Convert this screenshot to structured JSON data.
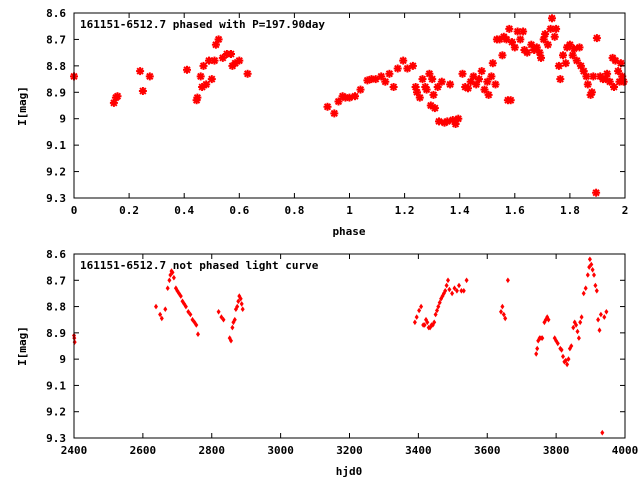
{
  "colors": {
    "marker": "#ff0000",
    "frame": "#000000",
    "background": "#ffffff"
  },
  "chart_data": [
    {
      "type": "scatter",
      "title": "161151-6512.7 phased with P=197.90day",
      "xlabel": "phase",
      "ylabel": "I[mag]",
      "xlim": [
        0,
        2
      ],
      "ylim": [
        8.6,
        9.3
      ],
      "y_inverted": true,
      "grid": false,
      "legend": "none",
      "marker": "star",
      "x_ticks": [
        "0",
        "0.2",
        "0.4",
        "0.6",
        "0.8",
        "1",
        "1.2",
        "1.4",
        "1.6",
        "1.8",
        "2"
      ],
      "y_ticks": [
        "8.6",
        "8.7",
        "8.8",
        "8.9",
        "9",
        "9.1",
        "9.2",
        "9.3"
      ],
      "x_tick_values": [
        0,
        0.2,
        0.4,
        0.6,
        0.8,
        1.0,
        1.2,
        1.4,
        1.6,
        1.8,
        2.0
      ],
      "y_tick_values": [
        8.6,
        8.7,
        8.8,
        8.9,
        9.0,
        9.1,
        9.2,
        9.3
      ],
      "points": [
        [
          0.0,
          8.84
        ],
        [
          0.145,
          8.94
        ],
        [
          0.152,
          8.92
        ],
        [
          0.158,
          8.915
        ],
        [
          0.24,
          8.82
        ],
        [
          0.25,
          8.895
        ],
        [
          0.275,
          8.84
        ],
        [
          0.41,
          8.815
        ],
        [
          0.445,
          8.93
        ],
        [
          0.448,
          8.92
        ],
        [
          0.46,
          8.84
        ],
        [
          0.465,
          8.88
        ],
        [
          0.47,
          8.8
        ],
        [
          0.48,
          8.87
        ],
        [
          0.49,
          8.78
        ],
        [
          0.5,
          8.85
        ],
        [
          0.51,
          8.78
        ],
        [
          0.515,
          8.72
        ],
        [
          0.525,
          8.7
        ],
        [
          0.54,
          8.77
        ],
        [
          0.555,
          8.755
        ],
        [
          0.57,
          8.755
        ],
        [
          0.575,
          8.8
        ],
        [
          0.585,
          8.79
        ],
        [
          0.6,
          8.78
        ],
        [
          0.63,
          8.83
        ],
        [
          0.92,
          8.955
        ],
        [
          0.945,
          8.98
        ],
        [
          0.96,
          8.935
        ],
        [
          0.975,
          8.915
        ],
        [
          0.985,
          8.92
        ],
        [
          1.0,
          8.92
        ],
        [
          1.02,
          8.915
        ],
        [
          1.04,
          8.89
        ],
        [
          1.065,
          8.855
        ],
        [
          1.08,
          8.85
        ],
        [
          1.095,
          8.85
        ],
        [
          1.115,
          8.84
        ],
        [
          1.13,
          8.86
        ],
        [
          1.145,
          8.83
        ],
        [
          1.16,
          8.88
        ],
        [
          1.175,
          8.81
        ],
        [
          1.195,
          8.78
        ],
        [
          1.21,
          8.81
        ],
        [
          1.23,
          8.8
        ],
        [
          1.24,
          8.88
        ],
        [
          1.245,
          8.9
        ],
        [
          1.255,
          8.92
        ],
        [
          1.265,
          8.85
        ],
        [
          1.275,
          8.88
        ],
        [
          1.28,
          8.89
        ],
        [
          1.29,
          8.83
        ],
        [
          1.295,
          8.95
        ],
        [
          1.3,
          8.85
        ],
        [
          1.305,
          8.91
        ],
        [
          1.31,
          8.96
        ],
        [
          1.32,
          8.88
        ],
        [
          1.325,
          9.01
        ],
        [
          1.335,
          8.86
        ],
        [
          1.345,
          9.015
        ],
        [
          1.355,
          9.01
        ],
        [
          1.365,
          8.87
        ],
        [
          1.375,
          9.005
        ],
        [
          1.385,
          9.02
        ],
        [
          1.395,
          9.0
        ],
        [
          1.41,
          8.83
        ],
        [
          1.42,
          8.88
        ],
        [
          1.43,
          8.885
        ],
        [
          1.44,
          8.86
        ],
        [
          1.45,
          8.84
        ],
        [
          1.46,
          8.87
        ],
        [
          1.47,
          8.85
        ],
        [
          1.48,
          8.82
        ],
        [
          1.49,
          8.89
        ],
        [
          1.5,
          8.86
        ],
        [
          1.505,
          8.91
        ],
        [
          1.515,
          8.84
        ],
        [
          1.52,
          8.79
        ],
        [
          1.53,
          8.87
        ],
        [
          1.535,
          8.7
        ],
        [
          1.545,
          8.7
        ],
        [
          1.555,
          8.76
        ],
        [
          1.56,
          8.69
        ],
        [
          1.57,
          8.7
        ],
        [
          1.575,
          8.93
        ],
        [
          1.58,
          8.66
        ],
        [
          1.585,
          8.93
        ],
        [
          1.59,
          8.71
        ],
        [
          1.6,
          8.73
        ],
        [
          1.61,
          8.67
        ],
        [
          1.62,
          8.7
        ],
        [
          1.63,
          8.67
        ],
        [
          1.635,
          8.74
        ],
        [
          1.645,
          8.75
        ],
        [
          1.66,
          8.72
        ],
        [
          1.67,
          8.74
        ],
        [
          1.68,
          8.73
        ],
        [
          1.69,
          8.75
        ],
        [
          1.695,
          8.77
        ],
        [
          1.705,
          8.7
        ],
        [
          1.71,
          8.68
        ],
        [
          1.72,
          8.72
        ],
        [
          1.73,
          8.66
        ],
        [
          1.735,
          8.62
        ],
        [
          1.745,
          8.69
        ],
        [
          1.75,
          8.66
        ],
        [
          1.76,
          8.8
        ],
        [
          1.765,
          8.85
        ],
        [
          1.775,
          8.76
        ],
        [
          1.785,
          8.79
        ],
        [
          1.79,
          8.73
        ],
        [
          1.8,
          8.72
        ],
        [
          1.81,
          8.76
        ],
        [
          1.815,
          8.735
        ],
        [
          1.825,
          8.78
        ],
        [
          1.835,
          8.73
        ],
        [
          1.84,
          8.8
        ],
        [
          1.85,
          8.82
        ],
        [
          1.86,
          8.84
        ],
        [
          1.865,
          8.87
        ],
        [
          1.875,
          8.91
        ],
        [
          1.88,
          8.9
        ],
        [
          1.885,
          8.84
        ],
        [
          1.895,
          9.28
        ],
        [
          1.898,
          8.695
        ],
        [
          1.91,
          8.84
        ],
        [
          1.92,
          8.85
        ],
        [
          1.93,
          8.85
        ],
        [
          1.935,
          8.83
        ],
        [
          1.945,
          8.86
        ],
        [
          1.955,
          8.77
        ],
        [
          1.96,
          8.88
        ],
        [
          1.965,
          8.78
        ],
        [
          1.975,
          8.82
        ],
        [
          1.98,
          8.86
        ],
        [
          1.985,
          8.79
        ],
        [
          1.99,
          8.84
        ],
        [
          1.995,
          8.86
        ]
      ]
    },
    {
      "type": "scatter",
      "title": "161151-6512.7 not phased light curve",
      "xlabel": "hjd0",
      "ylabel": "I[mag]",
      "xlim": [
        2400,
        4000
      ],
      "ylim": [
        8.6,
        9.3
      ],
      "y_inverted": true,
      "grid": false,
      "legend": "none",
      "marker": "diamond",
      "x_ticks": [
        "2400",
        "2600",
        "2800",
        "3000",
        "3200",
        "3400",
        "3600",
        "3800",
        "4000"
      ],
      "y_ticks": [
        "8.6",
        "8.7",
        "8.8",
        "8.9",
        "9",
        "9.1",
        "9.2",
        "9.3"
      ],
      "x_tick_values": [
        2400,
        2600,
        2800,
        3000,
        3200,
        3400,
        3600,
        3800,
        4000
      ],
      "y_tick_values": [
        8.6,
        8.7,
        8.8,
        8.9,
        9.0,
        9.1,
        9.2,
        9.3
      ],
      "points": [
        [
          2400,
          8.91
        ],
        [
          2401,
          8.92
        ],
        [
          2402,
          8.935
        ],
        [
          2638,
          8.8
        ],
        [
          2650,
          8.83
        ],
        [
          2655,
          8.845
        ],
        [
          2665,
          8.81
        ],
        [
          2672,
          8.73
        ],
        [
          2677,
          8.7
        ],
        [
          2680,
          8.68
        ],
        [
          2683,
          8.665
        ],
        [
          2686,
          8.67
        ],
        [
          2690,
          8.69
        ],
        [
          2696,
          8.73
        ],
        [
          2700,
          8.74
        ],
        [
          2705,
          8.75
        ],
        [
          2710,
          8.76
        ],
        [
          2715,
          8.78
        ],
        [
          2720,
          8.79
        ],
        [
          2725,
          8.8
        ],
        [
          2732,
          8.82
        ],
        [
          2738,
          8.83
        ],
        [
          2744,
          8.85
        ],
        [
          2750,
          8.86
        ],
        [
          2755,
          8.87
        ],
        [
          2760,
          8.905
        ],
        [
          2820,
          8.82
        ],
        [
          2828,
          8.84
        ],
        [
          2834,
          8.85
        ],
        [
          2852,
          8.92
        ],
        [
          2856,
          8.93
        ],
        [
          2860,
          8.88
        ],
        [
          2863,
          8.86
        ],
        [
          2867,
          8.85
        ],
        [
          2870,
          8.81
        ],
        [
          2874,
          8.8
        ],
        [
          2877,
          8.78
        ],
        [
          2880,
          8.76
        ],
        [
          2884,
          8.77
        ],
        [
          2887,
          8.79
        ],
        [
          2890,
          8.81
        ],
        [
          3390,
          8.86
        ],
        [
          3395,
          8.84
        ],
        [
          3402,
          8.815
        ],
        [
          3408,
          8.8
        ],
        [
          3414,
          8.87
        ],
        [
          3418,
          8.87
        ],
        [
          3422,
          8.85
        ],
        [
          3426,
          8.86
        ],
        [
          3430,
          8.88
        ],
        [
          3434,
          8.88
        ],
        [
          3438,
          8.87
        ],
        [
          3442,
          8.87
        ],
        [
          3446,
          8.86
        ],
        [
          3450,
          8.83
        ],
        [
          3454,
          8.815
        ],
        [
          3458,
          8.8
        ],
        [
          3462,
          8.785
        ],
        [
          3466,
          8.77
        ],
        [
          3470,
          8.76
        ],
        [
          3474,
          8.75
        ],
        [
          3478,
          8.74
        ],
        [
          3482,
          8.72
        ],
        [
          3486,
          8.7
        ],
        [
          3490,
          8.735
        ],
        [
          3498,
          8.75
        ],
        [
          3505,
          8.73
        ],
        [
          3512,
          8.74
        ],
        [
          3518,
          8.72
        ],
        [
          3525,
          8.74
        ],
        [
          3532,
          8.74
        ],
        [
          3540,
          8.7
        ],
        [
          3640,
          8.82
        ],
        [
          3644,
          8.8
        ],
        [
          3648,
          8.83
        ],
        [
          3652,
          8.845
        ],
        [
          3660,
          8.7
        ],
        [
          3742,
          8.98
        ],
        [
          3745,
          8.96
        ],
        [
          3748,
          8.93
        ],
        [
          3752,
          8.92
        ],
        [
          3756,
          8.92
        ],
        [
          3760,
          8.92
        ],
        [
          3766,
          8.86
        ],
        [
          3770,
          8.85
        ],
        [
          3774,
          8.84
        ],
        [
          3778,
          8.85
        ],
        [
          3796,
          8.92
        ],
        [
          3800,
          8.93
        ],
        [
          3805,
          8.94
        ],
        [
          3812,
          8.96
        ],
        [
          3816,
          8.965
        ],
        [
          3820,
          8.99
        ],
        [
          3824,
          9.01
        ],
        [
          3828,
          9.005
        ],
        [
          3832,
          9.02
        ],
        [
          3836,
          9.0
        ],
        [
          3840,
          8.96
        ],
        [
          3844,
          8.95
        ],
        [
          3850,
          8.88
        ],
        [
          3854,
          8.86
        ],
        [
          3858,
          8.87
        ],
        [
          3862,
          8.895
        ],
        [
          3866,
          8.92
        ],
        [
          3870,
          8.86
        ],
        [
          3874,
          8.84
        ],
        [
          3880,
          8.75
        ],
        [
          3886,
          8.73
        ],
        [
          3892,
          8.68
        ],
        [
          3896,
          8.65
        ],
        [
          3898,
          8.62
        ],
        [
          3902,
          8.64
        ],
        [
          3906,
          8.66
        ],
        [
          3910,
          8.68
        ],
        [
          3914,
          8.72
        ],
        [
          3918,
          8.74
        ],
        [
          3922,
          8.85
        ],
        [
          3926,
          8.89
        ],
        [
          3930,
          8.83
        ],
        [
          3934,
          9.28
        ],
        [
          3940,
          8.84
        ],
        [
          3946,
          8.82
        ]
      ]
    }
  ]
}
